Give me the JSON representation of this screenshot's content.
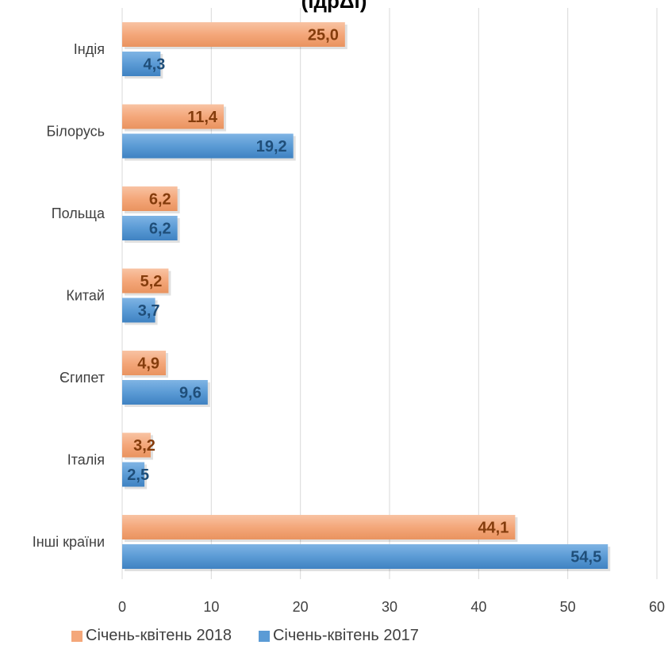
{
  "chart_data": {
    "type": "bar",
    "orientation": "horizontal",
    "title": "(ıдрΔі)",
    "categories": [
      "Індія",
      "Білорусь",
      "Польща",
      "Китай",
      "Єгипет",
      "Італія",
      "Інші країни"
    ],
    "series": [
      {
        "name": "Січень-квітень 2018",
        "color": "#f4a77a",
        "label_color": "#843c0c",
        "values": [
          25.0,
          11.4,
          6.2,
          5.2,
          4.9,
          3.2,
          44.1
        ],
        "labels": [
          "25,0",
          "11,4",
          "6,2",
          "5,2",
          "4,9",
          "3,2",
          "44,1"
        ]
      },
      {
        "name": "Січень-квітень 2017",
        "color": "#5b9bd5",
        "label_color": "#1f4e79",
        "values": [
          4.3,
          19.2,
          6.2,
          3.7,
          9.6,
          2.5,
          54.5
        ],
        "labels": [
          "4,3",
          "19,2",
          "6,2",
          "3,7",
          "9,6",
          "2,5",
          "54,5"
        ]
      }
    ],
    "xlim": [
      0,
      60
    ],
    "xticks": [
      "0",
      "10",
      "20",
      "30",
      "40",
      "50",
      "60"
    ],
    "grid": true,
    "legend_position": "bottom"
  }
}
